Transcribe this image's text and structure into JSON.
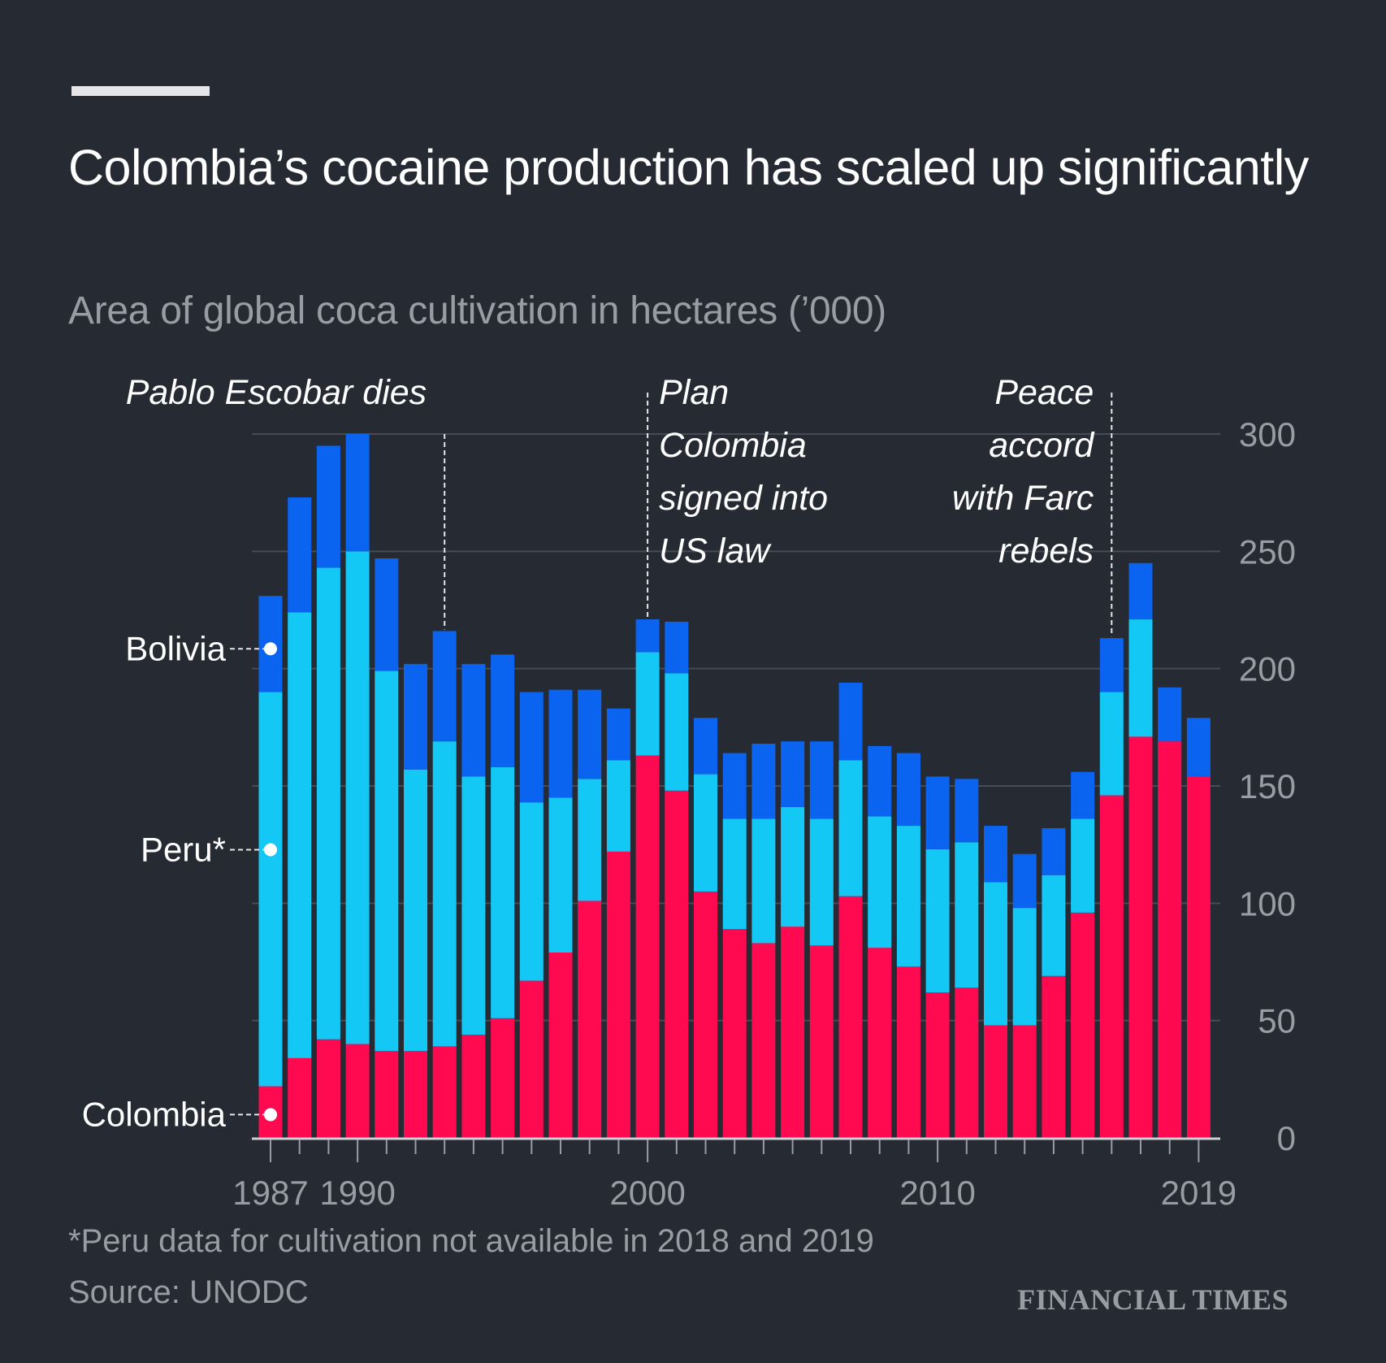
{
  "header": {
    "title": "Colombia’s cocaine production has scaled up significantly",
    "subtitle": "Area of global coca cultivation in hectares (’000)"
  },
  "footer": {
    "footnote": "*Peru data for cultivation not available in 2018 and 2019",
    "source": "Source: UNODC",
    "brand": "FINANCIAL TIMES"
  },
  "chart_data": {
    "type": "bar",
    "stacked": true,
    "title": "Colombia’s cocaine production has scaled up significantly",
    "subtitle": "Area of global coca cultivation in hectares (’000)",
    "xlabel": "",
    "ylabel": "",
    "ylim": [
      0,
      300
    ],
    "yticks": [
      0,
      50,
      100,
      150,
      200,
      250,
      300
    ],
    "y_axis_side": "right",
    "grid": true,
    "categories": [
      1987,
      1988,
      1989,
      1990,
      1991,
      1992,
      1993,
      1994,
      1995,
      1996,
      1997,
      1998,
      1999,
      2000,
      2001,
      2002,
      2003,
      2004,
      2005,
      2006,
      2007,
      2008,
      2009,
      2010,
      2011,
      2012,
      2013,
      2014,
      2015,
      2016,
      2017,
      2018,
      2019
    ],
    "xtick_labels": [
      {
        "year": 1987,
        "label": "1987"
      },
      {
        "year": 1990,
        "label": "1990"
      },
      {
        "year": 2000,
        "label": "2000"
      },
      {
        "year": 2010,
        "label": "2010"
      },
      {
        "year": 2019,
        "label": "2019"
      }
    ],
    "series": [
      {
        "name": "Colombia",
        "label": "Colombia",
        "color": "#ff0a50",
        "values": [
          22,
          34,
          42,
          40,
          37,
          37,
          39,
          44,
          51,
          67,
          79,
          101,
          122,
          163,
          148,
          105,
          89,
          83,
          90,
          82,
          103,
          81,
          73,
          62,
          64,
          48,
          48,
          69,
          96,
          146,
          171,
          169,
          154
        ]
      },
      {
        "name": "Peru",
        "label": "Peru*",
        "color": "#14c8f5",
        "values": [
          168,
          190,
          201,
          210,
          162,
          120,
          130,
          110,
          107,
          76,
          66,
          52,
          39,
          44,
          50,
          50,
          47,
          53,
          51,
          54,
          58,
          56,
          60,
          61,
          62,
          61,
          50,
          43,
          40,
          44,
          50,
          null,
          null
        ]
      },
      {
        "name": "Bolivia",
        "label": "Bolivia",
        "color": "#0a64f0",
        "values": [
          41,
          49,
          52,
          50,
          48,
          45,
          47,
          48,
          48,
          47,
          46,
          38,
          22,
          14,
          22,
          24,
          28,
          32,
          28,
          33,
          33,
          30,
          31,
          31,
          27,
          24,
          23,
          20,
          20,
          23,
          24,
          23,
          25
        ]
      }
    ],
    "legend": "inline-left",
    "annotations": [
      {
        "year": 1993,
        "lines": [
          "Pablo Escobar dies"
        ],
        "align": "end"
      },
      {
        "year": 2000,
        "lines": [
          "Plan",
          "Colombia",
          "signed into",
          "US law"
        ],
        "align": "start"
      },
      {
        "year": 2016,
        "lines": [
          "Peace",
          "accord",
          "with Farc",
          "rebels"
        ],
        "align": "end"
      }
    ]
  }
}
